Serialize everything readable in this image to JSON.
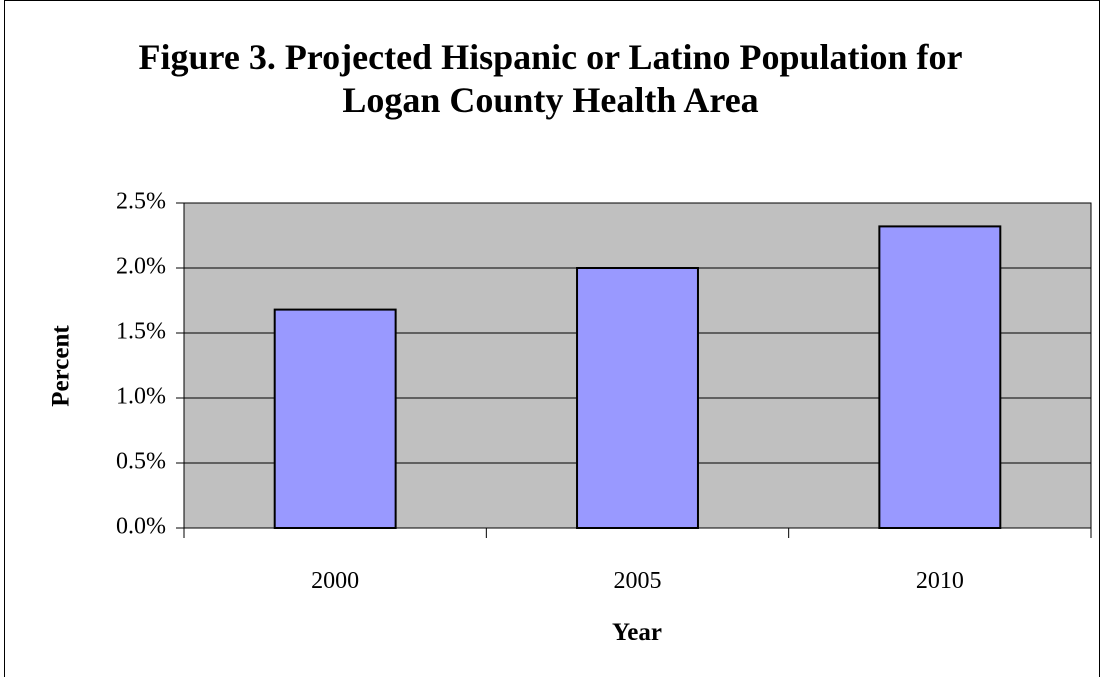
{
  "chart_data": {
    "type": "bar",
    "title_lines": [
      "Figure 3. Projected Hispanic or Latino Population for",
      "Logan County Health Area"
    ],
    "categories": [
      "2000",
      "2005",
      "2010"
    ],
    "values": [
      1.68,
      2.0,
      2.32
    ],
    "xlabel": "Year",
    "ylabel": "Percent",
    "ylim": [
      0,
      2.5
    ],
    "yticks": [
      0.0,
      0.5,
      1.0,
      1.5,
      2.0,
      2.5
    ],
    "ytick_labels": [
      "0.0%",
      "0.5%",
      "1.0%",
      "1.5%",
      "2.0%",
      "2.5%"
    ],
    "grid": true,
    "legend": "none",
    "colors": {
      "plot_background": "#c0c0c0",
      "bar_fill": "#9999ff",
      "bar_stroke": "#000000",
      "gridline": "#000000"
    }
  }
}
